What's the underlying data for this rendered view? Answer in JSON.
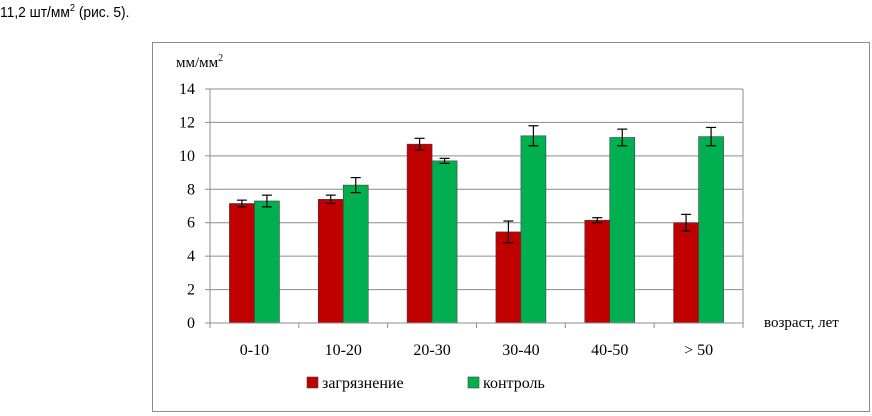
{
  "caption": {
    "text": "11,2 шт/мм",
    "sup": "2",
    "tail": " (рис. 5)."
  },
  "chart_data": {
    "type": "bar",
    "title": "",
    "ylabel": "мм/мм",
    "ylabel_sup": "2",
    "xlabel": "возраст, лет",
    "ylim": [
      0,
      14
    ],
    "yticks": [
      0,
      2,
      4,
      6,
      8,
      10,
      12,
      14
    ],
    "grid": true,
    "legend_position": "bottom",
    "categories": [
      "0-10",
      "10-20",
      "20-30",
      "30-40",
      "40-50",
      "> 50"
    ],
    "series": [
      {
        "name": "загрязнение",
        "color": "#c00000",
        "values": [
          7.15,
          7.4,
          10.7,
          5.45,
          6.15,
          6.0
        ],
        "errors": [
          0.2,
          0.25,
          0.35,
          0.65,
          0.15,
          0.5
        ]
      },
      {
        "name": "контроль",
        "color": "#00b050",
        "values": [
          7.3,
          8.25,
          9.7,
          11.2,
          11.1,
          11.15
        ],
        "errors": [
          0.35,
          0.45,
          0.15,
          0.6,
          0.5,
          0.55
        ]
      }
    ]
  }
}
